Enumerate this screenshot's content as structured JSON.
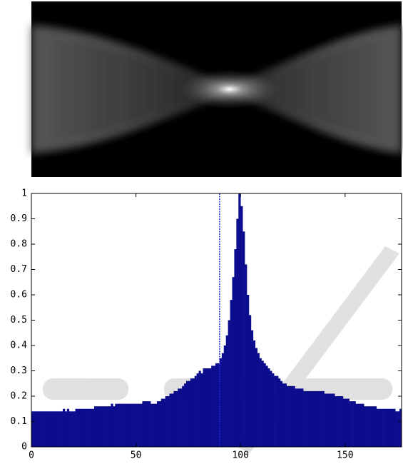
{
  "chart_data": {
    "type": "bar",
    "color": "#0c0c8e",
    "marker_color": "#2222dd",
    "xlim": [
      0,
      177
    ],
    "ylim": [
      0,
      1
    ],
    "xticks": [
      0,
      50,
      100,
      150
    ],
    "yticks": [
      0,
      0.1,
      0.2,
      0.3,
      0.4,
      0.5,
      0.6,
      0.7,
      0.8,
      0.9,
      1
    ],
    "vline": 90,
    "x": [
      0,
      1,
      2,
      3,
      4,
      5,
      6,
      7,
      8,
      9,
      10,
      11,
      12,
      13,
      14,
      15,
      16,
      17,
      18,
      19,
      20,
      21,
      22,
      23,
      24,
      25,
      26,
      27,
      28,
      29,
      30,
      31,
      32,
      33,
      34,
      35,
      36,
      37,
      38,
      39,
      40,
      41,
      42,
      43,
      44,
      45,
      46,
      47,
      48,
      49,
      50,
      51,
      52,
      53,
      54,
      55,
      56,
      57,
      58,
      59,
      60,
      61,
      62,
      63,
      64,
      65,
      66,
      67,
      68,
      69,
      70,
      71,
      72,
      73,
      74,
      75,
      76,
      77,
      78,
      79,
      80,
      81,
      82,
      83,
      84,
      85,
      86,
      87,
      88,
      89,
      90,
      91,
      92,
      93,
      94,
      95,
      96,
      97,
      98,
      99,
      100,
      101,
      102,
      103,
      104,
      105,
      106,
      107,
      108,
      109,
      110,
      111,
      112,
      113,
      114,
      115,
      116,
      117,
      118,
      119,
      120,
      121,
      122,
      123,
      124,
      125,
      126,
      127,
      128,
      129,
      130,
      131,
      132,
      133,
      134,
      135,
      136,
      137,
      138,
      139,
      140,
      141,
      142,
      143,
      144,
      145,
      146,
      147,
      148,
      149,
      150,
      151,
      152,
      153,
      154,
      155,
      156,
      157,
      158,
      159,
      160,
      161,
      162,
      163,
      164,
      165,
      166,
      167,
      168,
      169,
      170,
      171,
      172,
      173,
      174,
      175,
      176
    ],
    "values": [
      0.14,
      0.14,
      0.14,
      0.14,
      0.14,
      0.14,
      0.14,
      0.14,
      0.14,
      0.14,
      0.14,
      0.14,
      0.14,
      0.14,
      0.14,
      0.15,
      0.14,
      0.15,
      0.14,
      0.14,
      0.14,
      0.15,
      0.15,
      0.15,
      0.15,
      0.15,
      0.15,
      0.15,
      0.15,
      0.15,
      0.16,
      0.16,
      0.16,
      0.16,
      0.16,
      0.16,
      0.16,
      0.16,
      0.17,
      0.16,
      0.17,
      0.17,
      0.17,
      0.17,
      0.17,
      0.17,
      0.17,
      0.17,
      0.17,
      0.17,
      0.17,
      0.17,
      0.17,
      0.18,
      0.18,
      0.18,
      0.18,
      0.17,
      0.17,
      0.17,
      0.18,
      0.18,
      0.19,
      0.19,
      0.2,
      0.2,
      0.21,
      0.21,
      0.22,
      0.22,
      0.23,
      0.23,
      0.24,
      0.25,
      0.26,
      0.26,
      0.27,
      0.27,
      0.28,
      0.29,
      0.3,
      0.29,
      0.31,
      0.31,
      0.31,
      0.31,
      0.32,
      0.32,
      0.33,
      0.33,
      0.35,
      0.37,
      0.4,
      0.44,
      0.5,
      0.58,
      0.67,
      0.78,
      0.9,
      1,
      0.95,
      0.85,
      0.72,
      0.6,
      0.52,
      0.46,
      0.42,
      0.39,
      0.37,
      0.35,
      0.34,
      0.33,
      0.32,
      0.31,
      0.3,
      0.29,
      0.28,
      0.28,
      0.27,
      0.26,
      0.25,
      0.25,
      0.24,
      0.24,
      0.24,
      0.24,
      0.23,
      0.23,
      0.23,
      0.23,
      0.22,
      0.22,
      0.22,
      0.22,
      0.22,
      0.22,
      0.22,
      0.22,
      0.22,
      0.22,
      0.21,
      0.21,
      0.21,
      0.21,
      0.21,
      0.2,
      0.2,
      0.2,
      0.2,
      0.19,
      0.19,
      0.19,
      0.18,
      0.18,
      0.18,
      0.17,
      0.17,
      0.17,
      0.17,
      0.16,
      0.16,
      0.16,
      0.16,
      0.16,
      0.16,
      0.15,
      0.15,
      0.15,
      0.15,
      0.15,
      0.15,
      0.15,
      0.15,
      0.15,
      0.14,
      0.14,
      0.15
    ]
  }
}
